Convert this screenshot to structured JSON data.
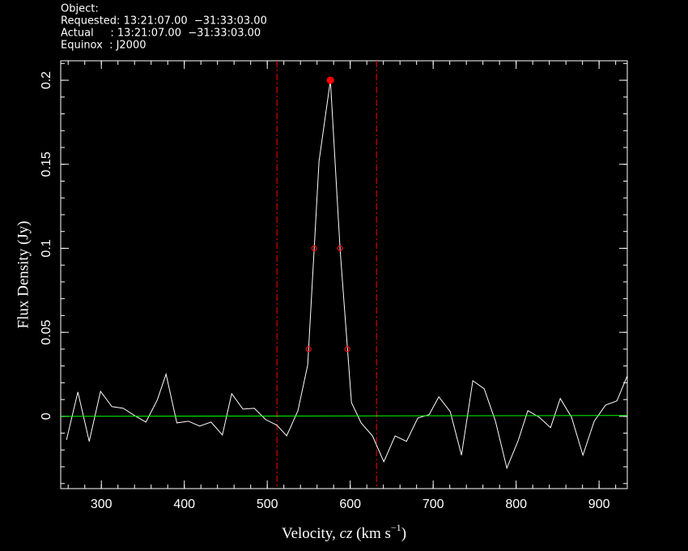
{
  "header": {
    "lines": [
      "Object:",
      "Requested: 13:21:07.00  −31:33:03.00",
      "Actual     : 13:21:07.00  −31:33:03.00",
      "Equinox  : J2000"
    ]
  },
  "chart_data": {
    "type": "line",
    "x_label": {
      "prefix": "Velocity, ",
      "italic": "cz",
      "middle": " (km s",
      "sup": "−1",
      "suffix": ")"
    },
    "y_label": "Flux Density (Jy)",
    "xlim": [
      251,
      934
    ],
    "ylim": [
      -0.043,
      0.2116
    ],
    "xticks": [
      300,
      400,
      500,
      600,
      700,
      800,
      900
    ],
    "yticks": [
      0,
      0.05,
      0.1,
      0.15,
      0.2
    ],
    "minor_ticks": true,
    "series": [
      {
        "color": "#ffffff",
        "x": [
          258,
          271.7,
          285.4,
          299,
          312.7,
          326.3,
          340,
          353.7,
          367.3,
          378,
          391,
          404.9,
          418.5,
          432.2,
          445.9,
          457.1,
          470.7,
          484.4,
          498,
          511.7,
          523.4,
          537,
          548.8,
          562.4,
          576.1,
          587.8,
          601.5,
          613.2,
          626.8,
          640.5,
          654.1,
          667.8,
          681.5,
          695.1,
          706.8,
          720.5,
          734.1,
          747.8,
          761.5,
          775.1,
          788.8,
          802.4,
          814.1,
          827.8,
          841.5,
          853.2,
          866.8,
          880.5,
          894.1,
          907.8,
          921.5,
          934
        ],
        "values": [
          -0.014,
          0.0145,
          -0.0149,
          0.0149,
          0.0058,
          0.0048,
          0.0005,
          -0.0034,
          0.0096,
          0.0251,
          -0.0039,
          -0.0029,
          -0.0058,
          -0.0034,
          -0.0111,
          0.0135,
          0.0043,
          0.0048,
          -0.0019,
          -0.0053,
          -0.0116,
          0.0034,
          0.0308,
          0.1518,
          0.2,
          0.0993,
          0.0082,
          -0.0039,
          -0.0116,
          -0.027,
          -0.0116,
          -0.0149,
          -0.001,
          0.001,
          0.0116,
          0.0029,
          -0.0231,
          0.0212,
          0.0164,
          -0.0029,
          -0.0308,
          -0.0145,
          0.0034,
          -0.0005,
          -0.0067,
          0.0106,
          -0.0005,
          -0.0231,
          -0.0029,
          0.0067,
          0.0092,
          0.0241
        ]
      },
      {
        "color": "#00ff00",
        "x": [
          251,
          934
        ],
        "values": [
          0,
          0.0005
        ]
      }
    ],
    "markers": {
      "color": "#ff0000",
      "x": [
        576.1,
        556.6,
        587.8,
        549.8,
        596.6
      ],
      "values": [
        0.2,
        0.1,
        0.1,
        0.04,
        0.04
      ],
      "filled": [
        true,
        false,
        false,
        false,
        false
      ]
    },
    "vlines": {
      "color": "#ff0000",
      "x": [
        511.7,
        631.7
      ]
    }
  }
}
